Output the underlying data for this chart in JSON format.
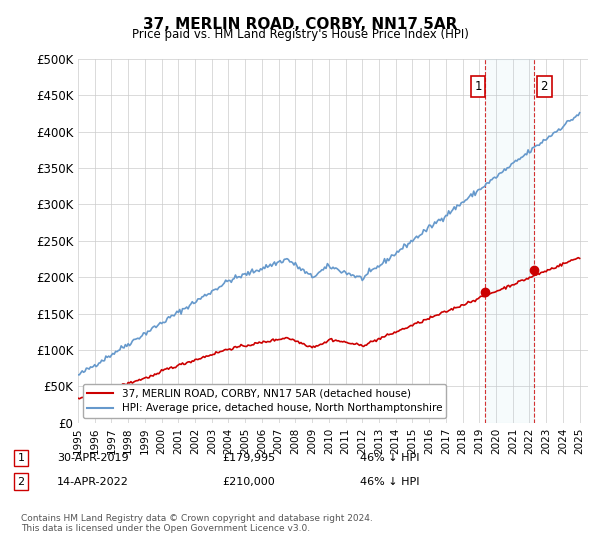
{
  "title": "37, MERLIN ROAD, CORBY, NN17 5AR",
  "subtitle": "Price paid vs. HM Land Registry's House Price Index (HPI)",
  "ylabel_ticks": [
    "£0",
    "£50K",
    "£100K",
    "£150K",
    "£200K",
    "£250K",
    "£300K",
    "£350K",
    "£400K",
    "£450K",
    "£500K"
  ],
  "ytick_values": [
    0,
    50000,
    100000,
    150000,
    200000,
    250000,
    300000,
    350000,
    400000,
    450000,
    500000
  ],
  "ylim": [
    0,
    500000
  ],
  "xlim_start": 1995.0,
  "xlim_end": 2025.5,
  "legend_line1": "37, MERLIN ROAD, CORBY, NN17 5AR (detached house)",
  "legend_line2": "HPI: Average price, detached house, North Northamptonshire",
  "annotation1_date": "30-APR-2019",
  "annotation1_price": "£179,995",
  "annotation1_hpi": "46% ↓ HPI",
  "annotation2_date": "14-APR-2022",
  "annotation2_price": "£210,000",
  "annotation2_hpi": "46% ↓ HPI",
  "footnote": "Contains HM Land Registry data © Crown copyright and database right 2024.\nThis data is licensed under the Open Government Licence v3.0.",
  "sale1_year": 2019.33,
  "sale1_price": 179995,
  "sale2_year": 2022.29,
  "sale2_price": 210000,
  "vline1_year": 2019.33,
  "vline2_year": 2022.29,
  "line_color_red": "#cc0000",
  "line_color_blue": "#6699cc",
  "vline_color": "#cc0000",
  "background_color": "#ffffff",
  "grid_color": "#cccccc"
}
